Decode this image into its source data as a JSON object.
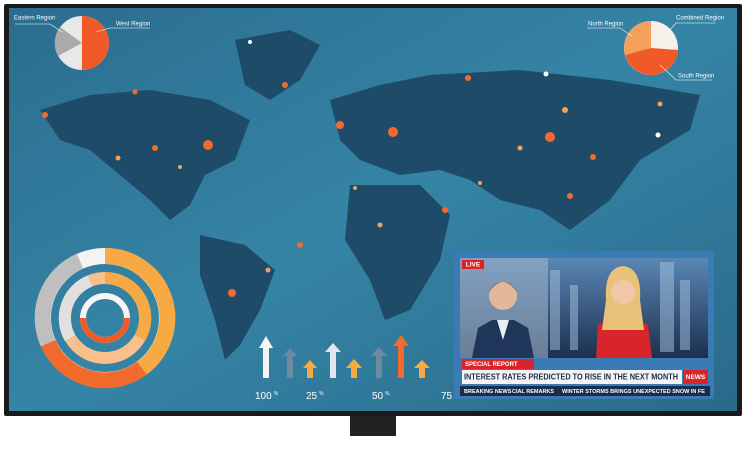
{
  "left_pie": [
    "Eastern Region",
    "West Region"
  ],
  "right_pie": [
    "North Region",
    "Combined Region",
    "South Region"
  ],
  "bar_labels": [
    {
      "value": "100",
      "unit": "%"
    },
    {
      "value": "25",
      "unit": "%"
    },
    {
      "value": "50",
      "unit": "%"
    },
    {
      "value": "75"
    }
  ],
  "news": {
    "live": "LIVE",
    "special_report": "SPECIAL REPORT",
    "headline": "INTEREST RATES PREDICTED TO RISE IN THE NEXT MONTH",
    "logo": "NEWS",
    "ticker": [
      "BREAKING NEWS",
      "CIAL REMARKS",
      "WINTER STORMS BRINGS UNEXPECTED SNOW IN FE"
    ]
  }
}
